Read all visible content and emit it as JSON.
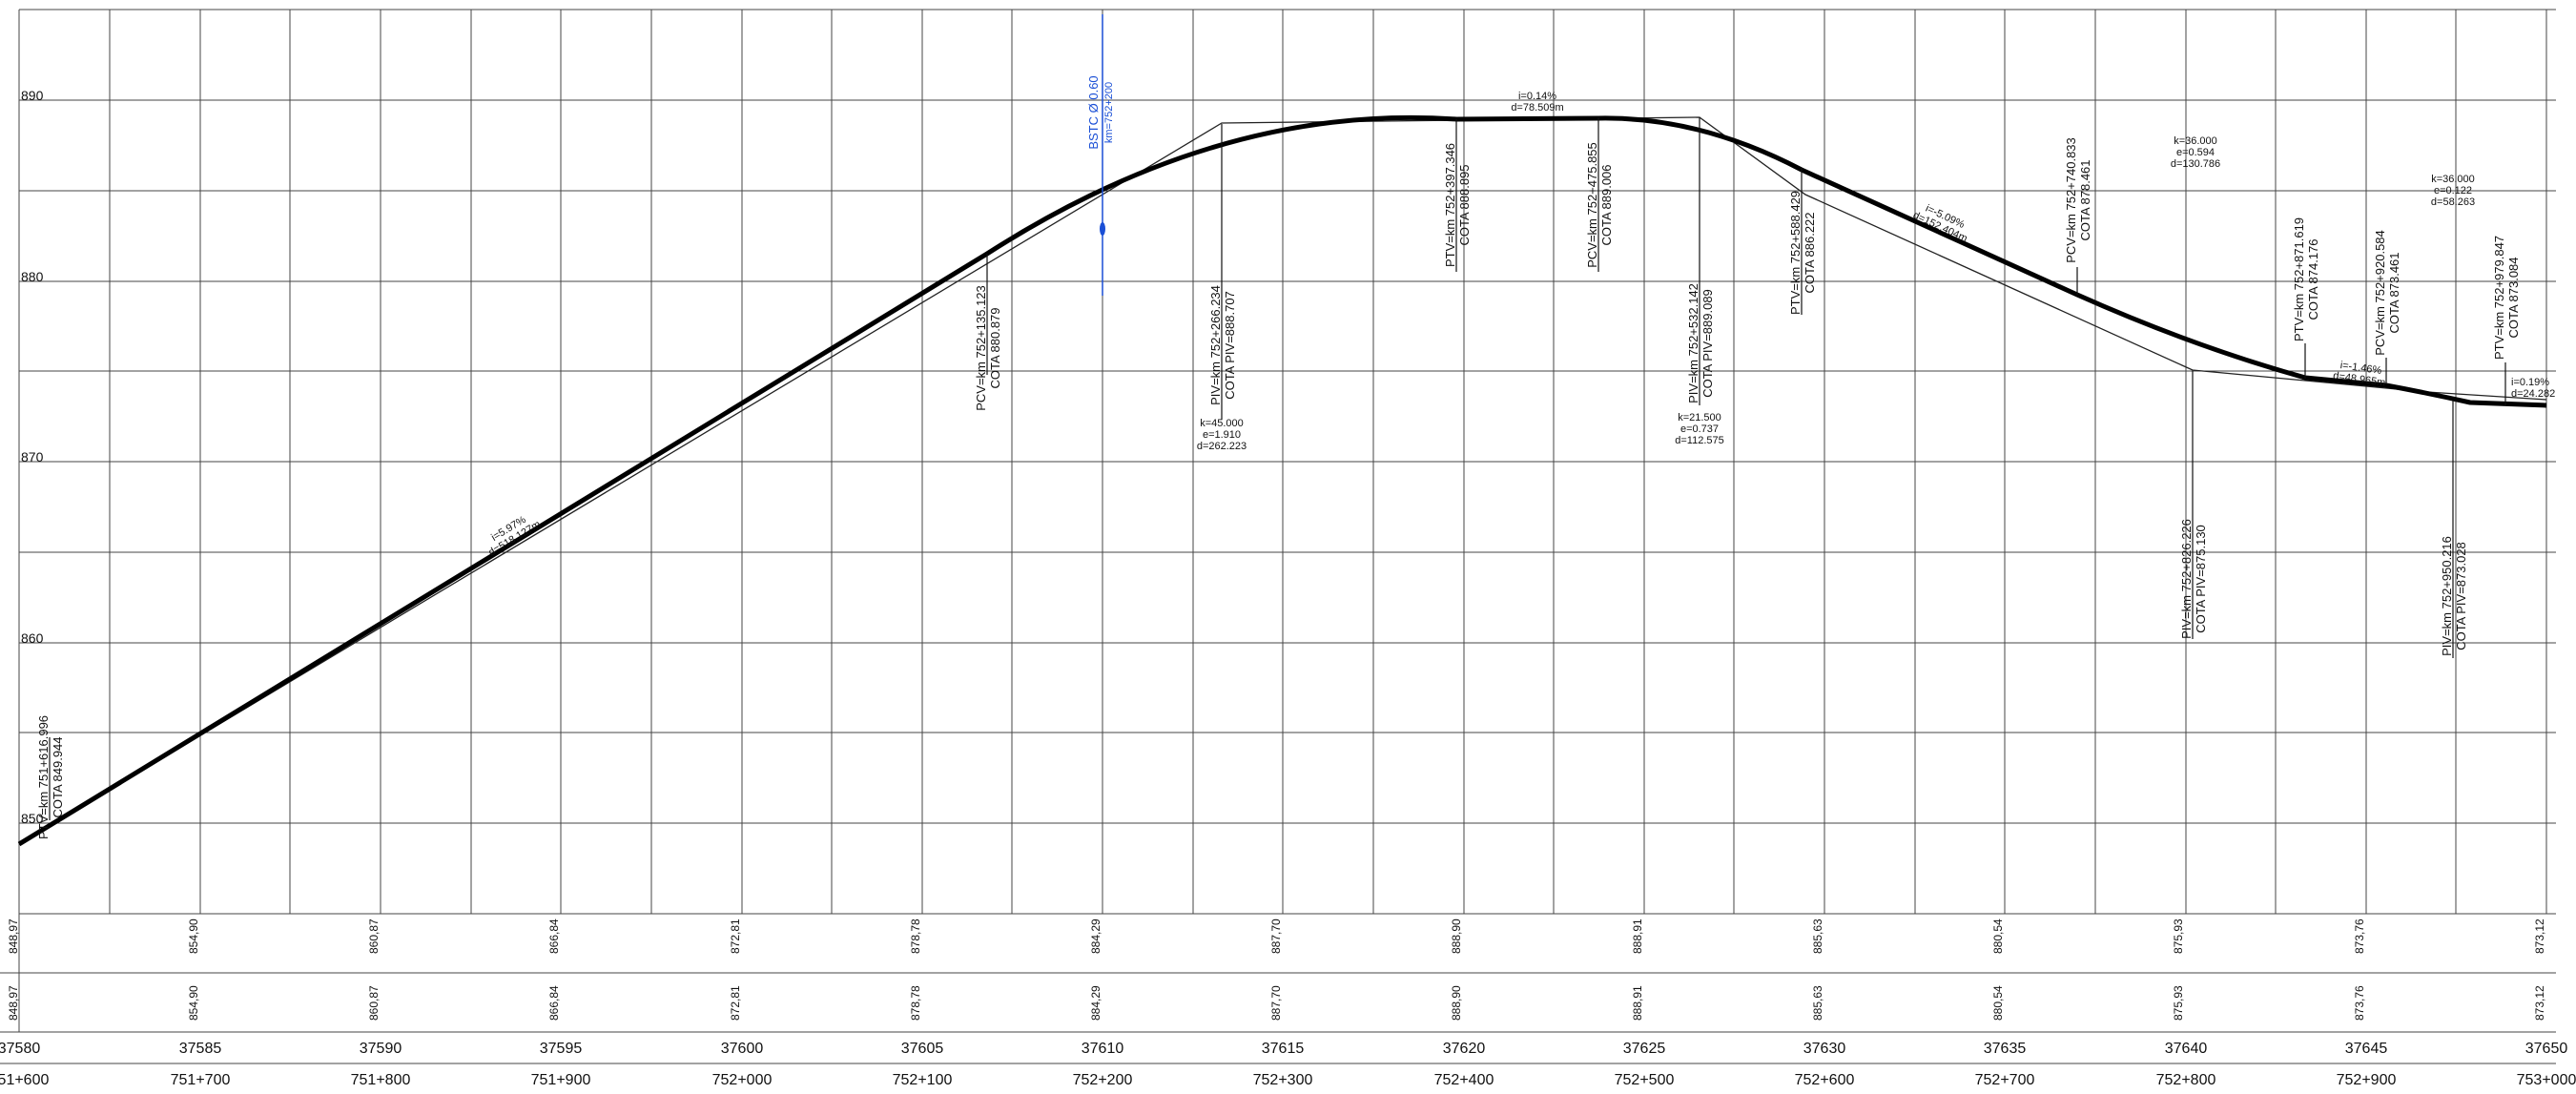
{
  "elevation_labels": [
    "890",
    "880",
    "870",
    "860",
    "850"
  ],
  "station_row": [
    "37580",
    "37585",
    "37590",
    "37595",
    "37600",
    "37605",
    "37610",
    "37615",
    "37620",
    "37625",
    "37630",
    "37635",
    "37640",
    "37645",
    "37650"
  ],
  "km_row": [
    "751+600",
    "751+700",
    "751+800",
    "751+900",
    "752+000",
    "752+100",
    "752+200",
    "752+300",
    "752+400",
    "752+500",
    "752+600",
    "752+700",
    "752+800",
    "752+900",
    "753+000"
  ],
  "terrain_row": [
    "848,97",
    "854,90",
    "860,87",
    "866,84",
    "872,81",
    "878,78",
    "884,29",
    "887,70",
    "888,90",
    "888,91",
    "885,63",
    "880,54",
    "875,93",
    "873,76",
    "873,12"
  ],
  "project_row": [
    "848,97",
    "854,90",
    "860,87",
    "866,84",
    "872,81",
    "878,78",
    "884,29",
    "887,70",
    "888,90",
    "888,91",
    "885,63",
    "880,54",
    "875,93",
    "873,76",
    "873,12"
  ],
  "pv_labels": [
    {
      "l1": "PTV=km 751+616.996",
      "l2": "COTA 849.944"
    },
    {
      "l1": "PCV=km 752+135.123",
      "l2": "COTA  880.879"
    },
    {
      "l1": "PIV=km 752+266.234",
      "l2": "COTA PIV=888.707"
    },
    {
      "l1": "PTV=km 752+397.346",
      "l2": "COTA 888.895"
    },
    {
      "l1": "PCV=km 752+475.855",
      "l2": "COTA  889.006"
    },
    {
      "l1": "PIV=km 752+532.142",
      "l2": "COTA PIV=889.089"
    },
    {
      "l1": "PTV=km 752+588.429",
      "l2": "COTA 886.222"
    },
    {
      "l1": "PCV=km 752+740.833",
      "l2": "COTA  878.461"
    },
    {
      "l1": "PIV=km 752+826.226",
      "l2": "COTA PIV=875.130"
    },
    {
      "l1": "PTV=km 752+871.619",
      "l2": "COTA 874.176"
    },
    {
      "l1": "PCV=km 752+920.584",
      "l2": "COTA  873.461"
    },
    {
      "l1": "PIV=km 752+950.216",
      "l2": "COTA PIV=873.028"
    },
    {
      "l1": "PTV=km 752+979.847",
      "l2": "COTA 873.084"
    }
  ],
  "curve_params": [
    {
      "k": "k=45.000",
      "e": "e=1.910",
      "d": "d=262.223"
    },
    {
      "k": "k=21.500",
      "e": "e=0.737",
      "d": "d=112.575"
    },
    {
      "k": "k=36.000",
      "e": "e=0.594",
      "d": "d=130.786"
    },
    {
      "k": "k=36.000",
      "e": "e=0.122",
      "d": "d=58.263"
    }
  ],
  "slope_labels": [
    {
      "i": "i=5.97%",
      "d": "d=518.127m"
    },
    {
      "i": "i=0.14%",
      "d": "d=78.509m"
    },
    {
      "i": "i=-5.09%",
      "d": "d=152.404m"
    },
    {
      "i": "i=-1.46%",
      "d": "d=48.965m"
    },
    {
      "i": "i=0.19%",
      "d": "d=24.282"
    }
  ],
  "culvert": {
    "l1": "BSTC Ø 0.60",
    "l2": "km=752+200",
    "color": "#1a4fd6"
  },
  "colors": {
    "grid": "#444444",
    "profile": "#000000",
    "culvert": "#1a4fd6"
  }
}
